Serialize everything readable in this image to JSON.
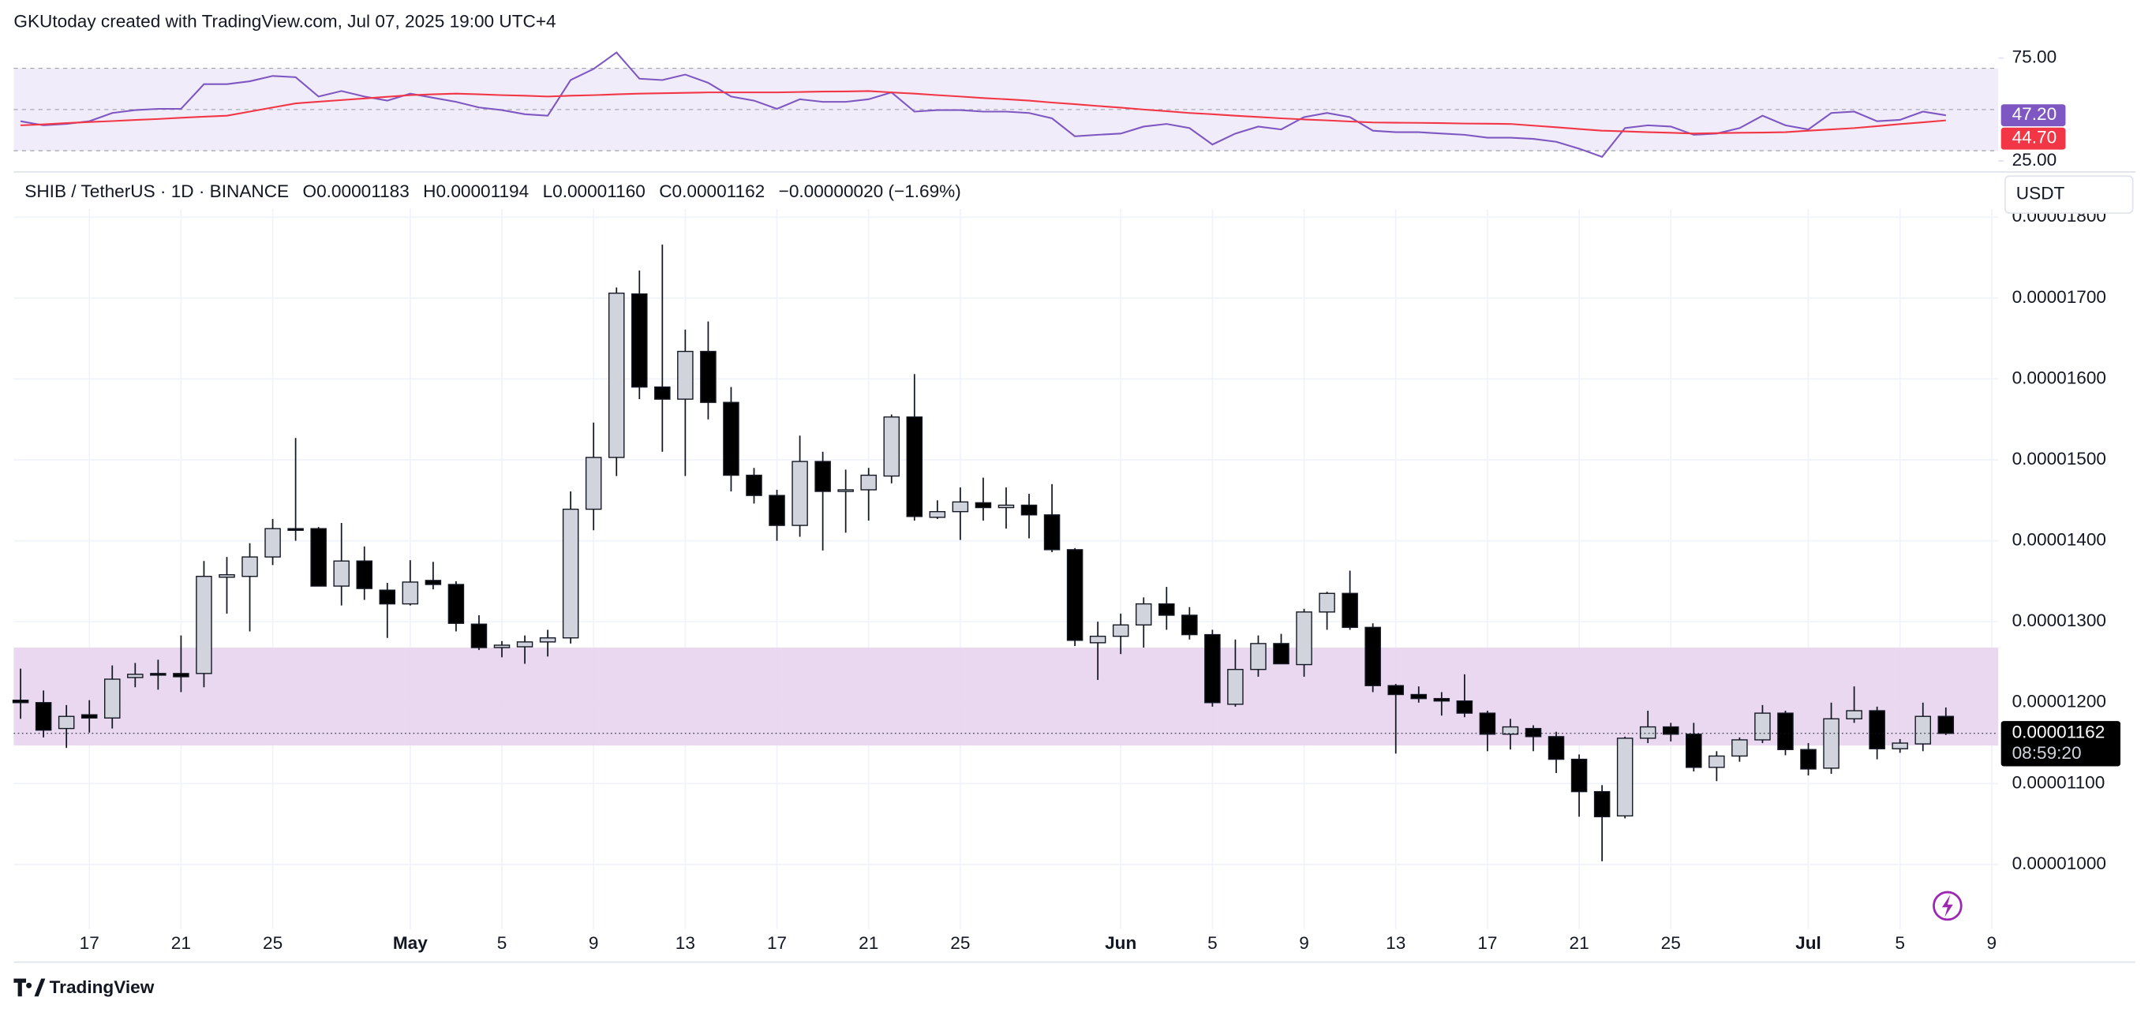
{
  "header": {
    "credit": "GKUtoday created with TradingView.com, Jul 07, 2025 19:00 UTC+4"
  },
  "footer": {
    "logo": "TradingView"
  },
  "chart_data": [
    {
      "type": "candlestick",
      "title": "SHIB / TetherUS · 1D · BINANCE",
      "ohlc_legend": [
        "O0.00001183",
        "H0.00001194",
        "L0.00001160",
        "C0.00001162",
        "−0.00000020 (−1.69%)"
      ],
      "currency": "USDT",
      "last_price_label": "0.00001162",
      "countdown": "08:59:20",
      "categories": [
        null,
        null,
        null,
        "17",
        null,
        null,
        null,
        "21",
        null,
        null,
        null,
        "25",
        null,
        null,
        null,
        null,
        null,
        "May",
        null,
        null,
        null,
        "5",
        null,
        null,
        null,
        "9",
        null,
        null,
        null,
        "13",
        null,
        null,
        null,
        "17",
        null,
        null,
        null,
        "21",
        null,
        null,
        null,
        "25",
        null,
        null,
        null,
        null,
        null,
        null,
        "Jun",
        null,
        null,
        null,
        "5",
        null,
        null,
        null,
        "9",
        null,
        null,
        null,
        "13",
        null,
        null,
        null,
        "17",
        null,
        null,
        null,
        "21",
        null,
        null,
        null,
        "25",
        null,
        null,
        null,
        null,
        null,
        "Jul",
        null,
        null,
        null,
        "5",
        null,
        null,
        null,
        "9"
      ],
      "open": [
        1.203e-05,
        1.2e-05,
        1.168e-05,
        1.185e-05,
        1.181e-05,
        1.231e-05,
        1.236e-05,
        1.236e-05,
        1.236e-05,
        1.355e-05,
        1.356e-05,
        1.38e-05,
        1.415e-05,
        1.415e-05,
        1.344e-05,
        1.375e-05,
        1.339e-05,
        1.322e-05,
        1.351e-05,
        1.346e-05,
        1.297e-05,
        1.268e-05,
        1.269e-05,
        1.275e-05,
        1.28e-05,
        1.439e-05,
        1.503e-05,
        1.705e-05,
        1.59e-05,
        1.575e-05,
        1.634e-05,
        1.571e-05,
        1.481e-05,
        1.456e-05,
        1.419e-05,
        1.498e-05,
        1.461e-05,
        1.463e-05,
        1.48e-05,
        1.553e-05,
        1.429e-05,
        1.436e-05,
        1.447e-05,
        1.441e-05,
        1.444e-05,
        1.432e-05,
        1.389e-05,
        1.274e-05,
        1.282e-05,
        1.296e-05,
        1.322e-05,
        1.308e-05,
        1.284e-05,
        1.198e-05,
        1.241e-05,
        1.273e-05,
        1.247e-05,
        1.312e-05,
        1.335e-05,
        1.293e-05,
        1.221e-05,
        1.21e-05,
        1.205e-05,
        1.202e-05,
        1.187e-05,
        1.161e-05,
        1.168e-05,
        1.158e-05,
        1.13e-05,
        1.09e-05,
        1.06e-05,
        1.156e-05,
        1.17e-05,
        1.161e-05,
        1.12e-05,
        1.134e-05,
        1.154e-05,
        1.187e-05,
        1.142e-05,
        1.119e-05,
        1.18e-05,
        1.19e-05,
        1.143e-05,
        1.149e-05,
        1.183e-05,
        null,
        null
      ],
      "high": [
        1.242e-05,
        1.215e-05,
        1.197e-05,
        1.203e-05,
        1.246e-05,
        1.249e-05,
        1.253e-05,
        1.283e-05,
        1.375e-05,
        1.38e-05,
        1.397e-05,
        1.427e-05,
        1.527e-05,
        1.417e-05,
        1.422e-05,
        1.393e-05,
        1.348e-05,
        1.376e-05,
        1.374e-05,
        1.35e-05,
        1.308e-05,
        1.276e-05,
        1.283e-05,
        1.29e-05,
        1.461e-05,
        1.546e-05,
        1.713e-05,
        1.734e-05,
        1.766e-05,
        1.661e-05,
        1.671e-05,
        1.59e-05,
        1.49e-05,
        1.463e-05,
        1.53e-05,
        1.51e-05,
        1.488e-05,
        1.49e-05,
        1.556e-05,
        1.606e-05,
        1.45e-05,
        1.466e-05,
        1.478e-05,
        1.466e-05,
        1.458e-05,
        1.47e-05,
        1.391e-05,
        1.3e-05,
        1.31e-05,
        1.33e-05,
        1.343e-05,
        1.318e-05,
        1.29e-05,
        1.278e-05,
        1.283e-05,
        1.285e-05,
        1.316e-05,
        1.337e-05,
        1.363e-05,
        1.298e-05,
        1.223e-05,
        1.22e-05,
        1.213e-05,
        1.235e-05,
        1.19e-05,
        1.18e-05,
        1.172e-05,
        1.164e-05,
        1.136e-05,
        1.098e-05,
        1.158e-05,
        1.19e-05,
        1.175e-05,
        1.175e-05,
        1.14e-05,
        1.157e-05,
        1.197e-05,
        1.19e-05,
        1.15e-05,
        1.2e-05,
        1.22e-05,
        1.195e-05,
        1.155e-05,
        1.2e-05,
        1.194e-05,
        null,
        null
      ],
      "low": [
        1.18e-05,
        1.157e-05,
        1.144e-05,
        1.163e-05,
        1.168e-05,
        1.219e-05,
        1.216e-05,
        1.213e-05,
        1.219e-05,
        1.31e-05,
        1.288e-05,
        1.37e-05,
        1.4e-05,
        1.344e-05,
        1.32e-05,
        1.327e-05,
        1.28e-05,
        1.32e-05,
        1.34e-05,
        1.288e-05,
        1.265e-05,
        1.256e-05,
        1.248e-05,
        1.257e-05,
        1.273e-05,
        1.413e-05,
        1.48e-05,
        1.575e-05,
        1.51e-05,
        1.48e-05,
        1.55e-05,
        1.461e-05,
        1.446e-05,
        1.4e-05,
        1.405e-05,
        1.388e-05,
        1.41e-05,
        1.425e-05,
        1.471e-05,
        1.425e-05,
        1.427e-05,
        1.401e-05,
        1.425e-05,
        1.415e-05,
        1.403e-05,
        1.386e-05,
        1.27e-05,
        1.228e-05,
        1.26e-05,
        1.268e-05,
        1.29e-05,
        1.278e-05,
        1.195e-05,
        1.195e-05,
        1.232e-05,
        1.248e-05,
        1.232e-05,
        1.29e-05,
        1.29e-05,
        1.213e-05,
        1.137e-05,
        1.2e-05,
        1.184e-05,
        1.182e-05,
        1.14e-05,
        1.142e-05,
        1.14e-05,
        1.113e-05,
        1.059e-05,
        1.004e-05,
        1.057e-05,
        1.15e-05,
        1.152e-05,
        1.115e-05,
        1.103e-05,
        1.127e-05,
        1.15e-05,
        1.135e-05,
        1.11e-05,
        1.112e-05,
        1.175e-05,
        1.13e-05,
        1.138e-05,
        1.14e-05,
        1.16e-05,
        null,
        null
      ],
      "close": [
        1.2e-05,
        1.166e-05,
        1.183e-05,
        1.181e-05,
        1.229e-05,
        1.235e-05,
        1.235e-05,
        1.232e-05,
        1.356e-05,
        1.358e-05,
        1.38e-05,
        1.415e-05,
        1.413e-05,
        1.344e-05,
        1.375e-05,
        1.341e-05,
        1.322e-05,
        1.349e-05,
        1.346e-05,
        1.298e-05,
        1.268e-05,
        1.271e-05,
        1.275e-05,
        1.28e-05,
        1.439e-05,
        1.503e-05,
        1.706e-05,
        1.59e-05,
        1.575e-05,
        1.634e-05,
        1.571e-05,
        1.481e-05,
        1.456e-05,
        1.419e-05,
        1.498e-05,
        1.461e-05,
        1.463e-05,
        1.481e-05,
        1.553e-05,
        1.43e-05,
        1.436e-05,
        1.448e-05,
        1.441e-05,
        1.444e-05,
        1.432e-05,
        1.389e-05,
        1.277e-05,
        1.282e-05,
        1.296e-05,
        1.322e-05,
        1.308e-05,
        1.284e-05,
        1.2e-05,
        1.241e-05,
        1.273e-05,
        1.248e-05,
        1.312e-05,
        1.335e-05,
        1.293e-05,
        1.221e-05,
        1.21e-05,
        1.205e-05,
        1.202e-05,
        1.187e-05,
        1.161e-05,
        1.17e-05,
        1.158e-05,
        1.13e-05,
        1.09e-05,
        1.059e-05,
        1.156e-05,
        1.17e-05,
        1.161e-05,
        1.12e-05,
        1.134e-05,
        1.154e-05,
        1.187e-05,
        1.142e-05,
        1.118e-05,
        1.18e-05,
        1.19e-05,
        1.143e-05,
        1.15e-05,
        1.183e-05,
        1.162e-05,
        null,
        null
      ],
      "up_color": "#d1d4dc",
      "down_color": "#000000",
      "wick_color": "#131722",
      "highlight_zone": [
        1.147e-05,
        1.268e-05
      ],
      "zone_color": "#e8d4ef",
      "ylim": [
        9.2e-06,
        1.81e-05
      ],
      "yticks": [
        {
          "value": 1e-05,
          "label": "0.00001000"
        },
        {
          "value": 1.1e-05,
          "label": "0.00001100"
        },
        {
          "value": 1.2e-05,
          "label": "0.00001200"
        },
        {
          "value": 1.3e-05,
          "label": "0.00001300"
        },
        {
          "value": 1.4e-05,
          "label": "0.00001400"
        },
        {
          "value": 1.5e-05,
          "label": "0.00001500"
        },
        {
          "value": 1.6e-05,
          "label": "0.00001600"
        },
        {
          "value": 1.7e-05,
          "label": "0.00001700"
        },
        {
          "value": 1.8e-05,
          "label": "0.00001800"
        }
      ],
      "grid": true
    },
    {
      "type": "line",
      "ylim": [
        21,
        84.3
      ],
      "yticks": [
        {
          "value": 25,
          "label": "25.00"
        },
        {
          "value": 75,
          "label": "75.00"
        }
      ],
      "band_levels": [
        30,
        50,
        70
      ],
      "band_color": "#f1ecfa",
      "series": [
        {
          "color": "#7e57c2",
          "last_value_label": "47.20",
          "values": [
            44.3,
            42.3,
            43.0,
            44.3,
            48.3,
            49.7,
            50.3,
            50.3,
            62.3,
            62.3,
            63.7,
            66.3,
            65.7,
            56.3,
            59.0,
            56.3,
            54.3,
            57.7,
            55.7,
            53.7,
            51.0,
            49.7,
            47.7,
            47.0,
            64.3,
            69.7,
            77.7,
            65.0,
            64.3,
            67.0,
            63.0,
            56.3,
            54.3,
            50.3,
            55.0,
            53.7,
            53.7,
            55.0,
            58.3,
            49.0,
            49.7,
            49.7,
            49.0,
            49.0,
            48.3,
            45.7,
            37.0,
            37.7,
            38.3,
            41.7,
            43.0,
            41.0,
            33.0,
            38.3,
            41.7,
            40.3,
            46.3,
            48.3,
            46.3,
            39.7,
            39.0,
            39.0,
            38.3,
            37.7,
            36.3,
            36.3,
            35.7,
            34.3,
            31.0,
            27.0,
            41.0,
            42.3,
            41.7,
            37.7,
            38.3,
            41.0,
            47.0,
            42.3,
            40.3,
            48.3,
            49.0,
            44.3,
            45.0,
            49.0,
            47.2,
            null,
            null
          ]
        },
        {
          "color": "#f23645",
          "last_value_label": "44.70",
          "values": [
            42.3,
            42.8,
            43.4,
            43.9,
            44.4,
            44.9,
            45.4,
            46.0,
            46.5,
            47.0,
            49.0,
            51.0,
            53.0,
            53.8,
            54.6,
            55.4,
            56.2,
            57.0,
            57.4,
            57.7,
            57.4,
            57.0,
            56.7,
            56.3,
            56.7,
            57.0,
            57.4,
            57.7,
            57.9,
            58.1,
            58.3,
            58.3,
            58.3,
            58.3,
            58.5,
            58.7,
            58.8,
            59.0,
            58.3,
            57.7,
            57.0,
            56.3,
            55.6,
            55.0,
            54.3,
            53.4,
            52.6,
            51.7,
            50.9,
            50.0,
            49.2,
            48.3,
            47.7,
            47.0,
            46.4,
            45.7,
            45.2,
            44.7,
            44.2,
            43.7,
            43.6,
            43.5,
            43.4,
            43.2,
            43.1,
            43.0,
            42.2,
            41.4,
            40.5,
            39.7,
            39.4,
            39.0,
            38.7,
            38.3,
            38.5,
            38.7,
            38.8,
            39.0,
            39.7,
            40.3,
            41.0,
            41.9,
            42.9,
            43.8,
            44.7,
            null,
            null
          ]
        }
      ]
    }
  ]
}
